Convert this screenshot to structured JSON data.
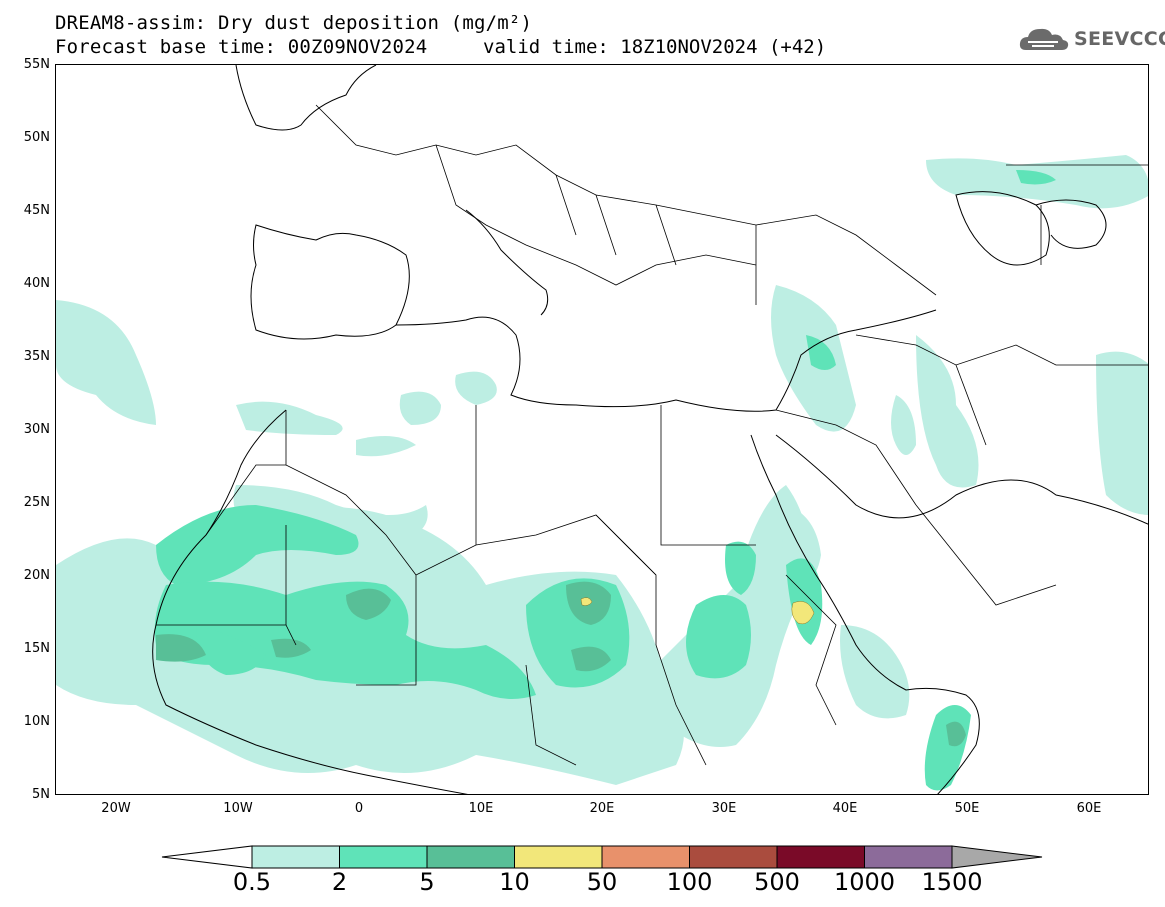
{
  "title": {
    "line1": "DREAM8-assim: Dry dust deposition (mg/m²)",
    "line2_left": "Forecast base time: 00Z09NOV2024",
    "line2_right": "valid time: 18Z10NOV2024 (+42)"
  },
  "logo": {
    "text": "SEEVCCC",
    "icon": "cloud-icon",
    "color": "#666666"
  },
  "map": {
    "lon_range": [
      -25,
      65
    ],
    "lat_range": [
      5,
      55
    ],
    "lat_labels": [
      "55N",
      "50N",
      "45N",
      "40N",
      "35N",
      "30N",
      "25N",
      "20N",
      "15N",
      "10N",
      "5N"
    ],
    "lon_labels": [
      "20W",
      "10W",
      "0",
      "10E",
      "20E",
      "30E",
      "40E",
      "50E",
      "60E"
    ]
  },
  "legend": {
    "levels": [
      "0.5",
      "2",
      "5",
      "10",
      "50",
      "100",
      "500",
      "1000",
      "1500"
    ],
    "colors": [
      "#ffffff",
      "#bdeee3",
      "#5fe3b8",
      "#58bf97",
      "#f2e77a",
      "#e8916b",
      "#aa4c3e",
      "#7a0a28",
      "#8c6b9a",
      "#a8a8a8"
    ]
  }
}
